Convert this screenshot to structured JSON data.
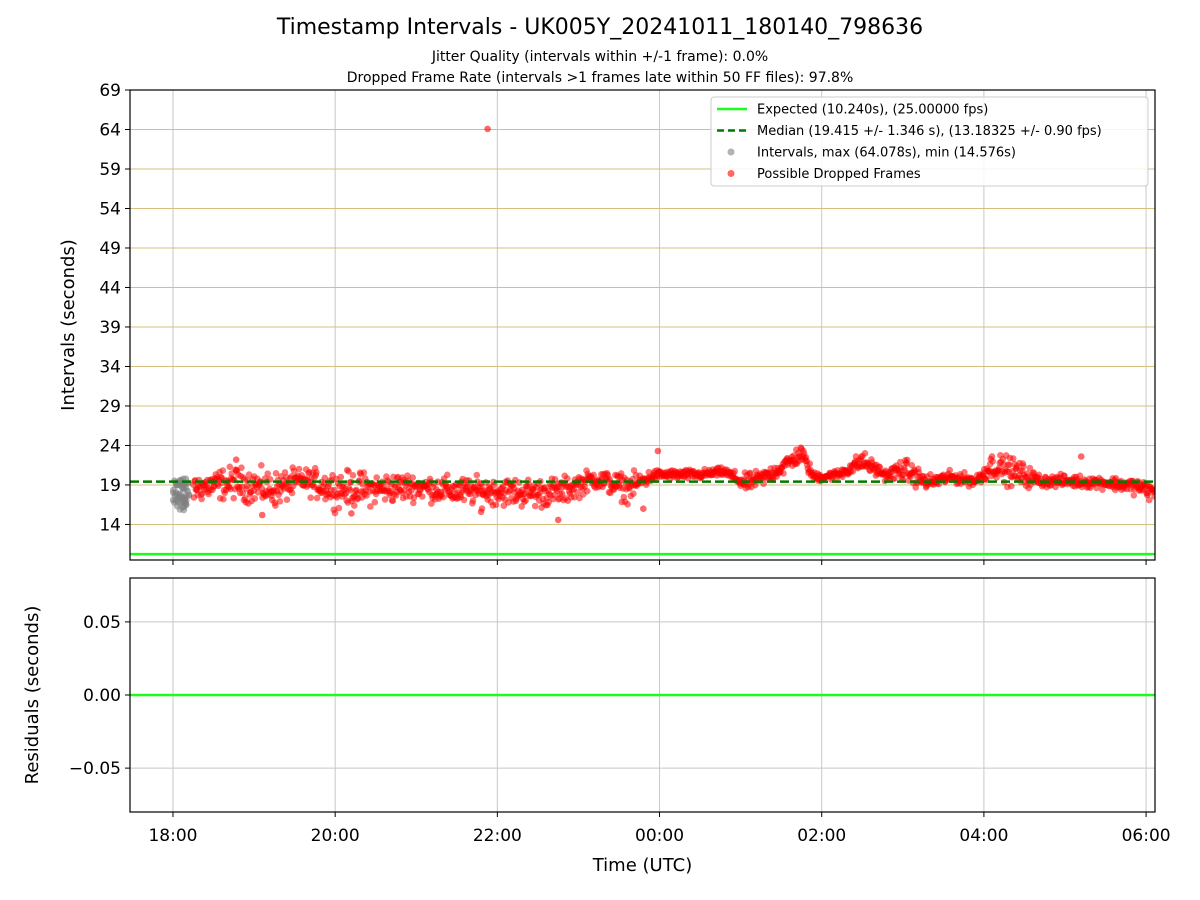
{
  "figure": {
    "title": "Timestamp Intervals - UK005Y_20241011_180140_798636",
    "subtitle_1": "Jitter Quality (intervals within +/-1 frame): 0.0%",
    "subtitle_2": "Dropped Frame Rate (intervals >1 frames late within 50 FF files): 97.8%"
  },
  "chart_data": [
    {
      "type": "scatter",
      "panel": "intervals",
      "ylabel": "Intervals (seconds)",
      "xlabel": "",
      "ylim": [
        9.5,
        69
      ],
      "yticks": [
        14,
        19,
        24,
        29,
        34,
        39,
        44,
        49,
        54,
        59,
        64,
        69
      ],
      "ytick_labels": [
        "14",
        "19",
        "24",
        "29",
        "34",
        "39",
        "44",
        "49",
        "54",
        "59",
        "64",
        "69"
      ],
      "xlim_hours": [
        17.47,
        30.11
      ],
      "xticks_hours": [
        18,
        20,
        22,
        24,
        26,
        28,
        30
      ],
      "xtick_labels": [
        "18:00",
        "20:00",
        "22:00",
        "00:00",
        "02:00",
        "04:00",
        "06:00"
      ],
      "hgrid": {
        "values": [
          14,
          19,
          24,
          29,
          34,
          39,
          44,
          49,
          54,
          59,
          64,
          69
        ],
        "color": "#d4bf7f"
      },
      "vgrid_color": "#c8c8c8",
      "legend_position": "upper-right",
      "lines": [
        {
          "name": "Expected (10.240s), (25.00000 fps)",
          "y": 10.24,
          "color": "#1aff1a",
          "style": "solid"
        },
        {
          "name": "Median (19.415 +/- 1.346 s), (13.18325 +/- 0.90 fps)",
          "y": 19.415,
          "color": "#007a00",
          "style": "dashed"
        }
      ],
      "series": [
        {
          "name": "Intervals, max (64.078s), min (14.576s)",
          "color": "#808080",
          "x_range_hours": [
            18.0,
            18.2
          ],
          "y_range": [
            15.8,
            19.8
          ],
          "count": 60
        },
        {
          "name": "Possible Dropped Frames",
          "color": "#ff0000",
          "trend": [
            {
              "x": 18.25,
              "y": 18.6,
              "spread": 1.4
            },
            {
              "x": 18.75,
              "y": 19.3,
              "spread": 1.6
            },
            {
              "x": 19.25,
              "y": 18.4,
              "spread": 1.8
            },
            {
              "x": 19.6,
              "y": 19.6,
              "spread": 1.2
            },
            {
              "x": 20.0,
              "y": 18.5,
              "spread": 1.8
            },
            {
              "x": 20.5,
              "y": 18.5,
              "spread": 1.6
            },
            {
              "x": 21.0,
              "y": 18.8,
              "spread": 1.3
            },
            {
              "x": 21.5,
              "y": 18.2,
              "spread": 1.4
            },
            {
              "x": 22.0,
              "y": 18.2,
              "spread": 1.4
            },
            {
              "x": 22.5,
              "y": 18.0,
              "spread": 1.5
            },
            {
              "x": 22.8,
              "y": 18.2,
              "spread": 1.4
            },
            {
              "x": 23.2,
              "y": 19.8,
              "spread": 1.0
            },
            {
              "x": 23.6,
              "y": 18.6,
              "spread": 1.4
            },
            {
              "x": 23.95,
              "y": 20.3,
              "spread": 0.5
            },
            {
              "x": 24.5,
              "y": 20.3,
              "spread": 0.5
            },
            {
              "x": 24.8,
              "y": 20.7,
              "spread": 0.4
            },
            {
              "x": 25.05,
              "y": 19.2,
              "spread": 0.9
            },
            {
              "x": 25.3,
              "y": 20.0,
              "spread": 0.8
            },
            {
              "x": 25.55,
              "y": 21.5,
              "spread": 0.9
            },
            {
              "x": 25.75,
              "y": 23.0,
              "spread": 0.9
            },
            {
              "x": 25.9,
              "y": 20.0,
              "spread": 0.5
            },
            {
              "x": 26.2,
              "y": 20.3,
              "spread": 0.5
            },
            {
              "x": 26.5,
              "y": 22.0,
              "spread": 1.0
            },
            {
              "x": 26.8,
              "y": 20.2,
              "spread": 0.5
            },
            {
              "x": 27.0,
              "y": 21.0,
              "spread": 1.2
            },
            {
              "x": 27.3,
              "y": 19.3,
              "spread": 0.8
            },
            {
              "x": 27.6,
              "y": 20.0,
              "spread": 0.6
            },
            {
              "x": 27.9,
              "y": 19.5,
              "spread": 0.6
            },
            {
              "x": 28.1,
              "y": 21.5,
              "spread": 1.2
            },
            {
              "x": 28.4,
              "y": 20.5,
              "spread": 1.5
            },
            {
              "x": 28.7,
              "y": 19.5,
              "spread": 0.6
            },
            {
              "x": 29.0,
              "y": 19.5,
              "spread": 0.6
            },
            {
              "x": 29.5,
              "y": 19.3,
              "spread": 0.6
            },
            {
              "x": 29.9,
              "y": 18.8,
              "spread": 0.8
            },
            {
              "x": 30.11,
              "y": 18.0,
              "spread": 1.0
            }
          ],
          "outliers": [
            {
              "x": 21.88,
              "y": 64.08
            },
            {
              "x": 23.98,
              "y": 23.3
            },
            {
              "x": 29.2,
              "y": 22.6
            },
            {
              "x": 18.78,
              "y": 22.2
            },
            {
              "x": 22.75,
              "y": 14.58
            },
            {
              "x": 19.1,
              "y": 15.2
            },
            {
              "x": 20.2,
              "y": 15.4
            },
            {
              "x": 21.8,
              "y": 15.6
            },
            {
              "x": 23.8,
              "y": 16.0
            }
          ]
        }
      ]
    },
    {
      "type": "line",
      "panel": "residuals",
      "ylabel": "Residuals (seconds)",
      "xlabel": "Time (UTC)",
      "ylim": [
        -0.08,
        0.08
      ],
      "yticks": [
        0.05,
        0.0,
        -0.05
      ],
      "ytick_labels": [
        "0.05",
        "0.00",
        "−0.05"
      ],
      "xlim_hours": [
        17.47,
        30.11
      ],
      "xticks_hours": [
        18,
        20,
        22,
        24,
        26,
        28,
        30
      ],
      "xtick_labels": [
        "18:00",
        "20:00",
        "22:00",
        "00:00",
        "02:00",
        "04:00",
        "06:00"
      ],
      "grid": true,
      "lines": [
        {
          "y": 0.0,
          "color": "#1aff1a"
        }
      ]
    }
  ]
}
